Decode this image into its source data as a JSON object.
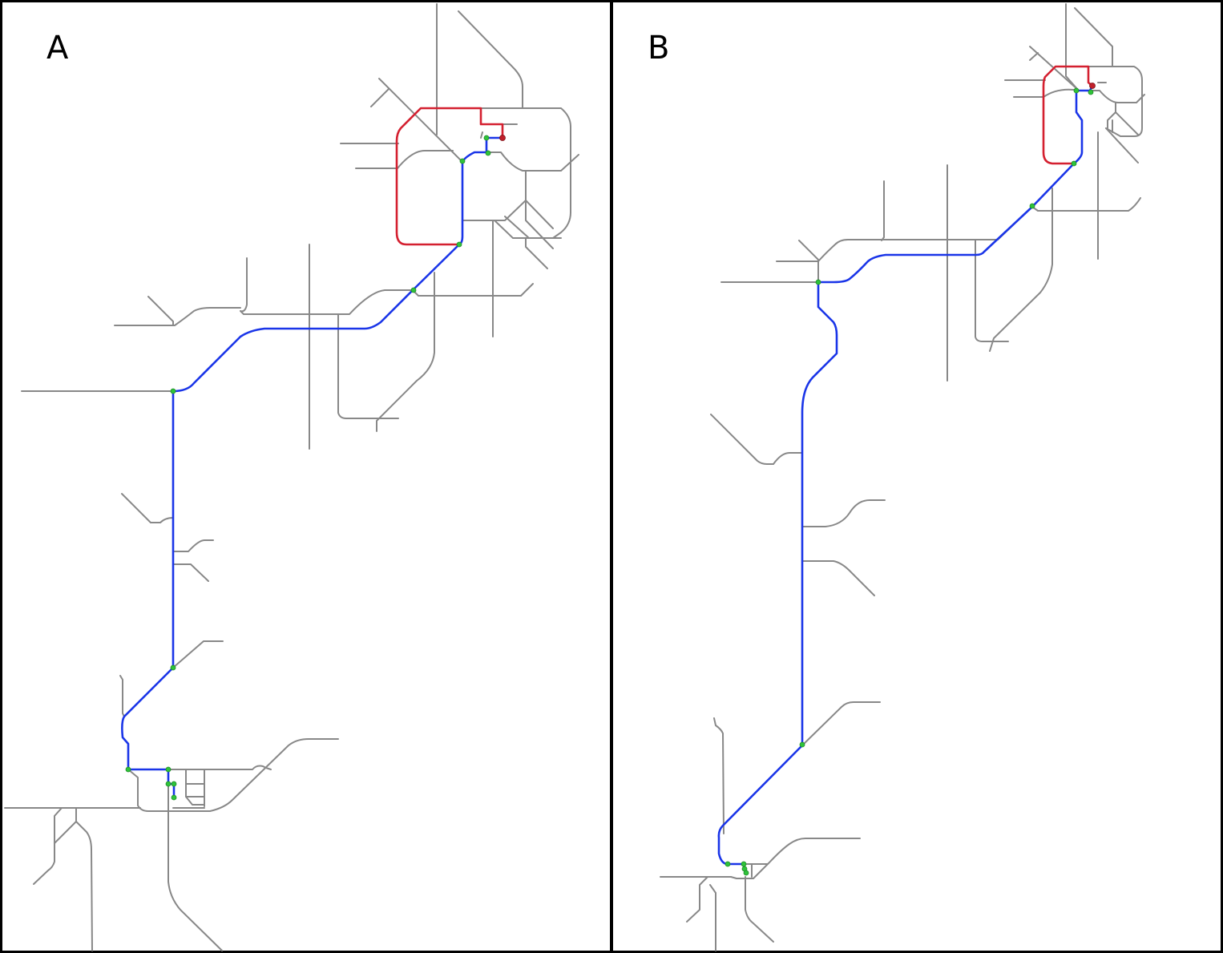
{
  "panels": [
    {
      "id": "A",
      "label": "A"
    },
    {
      "id": "B",
      "label": "B"
    }
  ],
  "colors": {
    "road": "#888888",
    "route_primary": "#1a35e8",
    "route_alternate": "#d42030",
    "waypoint": "#2fc33a",
    "destination": "#c0202a",
    "border": "#000000",
    "background": "#ffffff"
  },
  "legend": []
}
